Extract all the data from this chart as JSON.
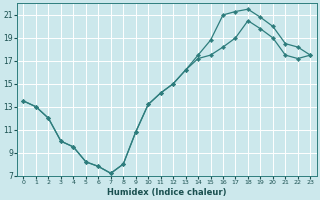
{
  "title": "",
  "xlabel": "Humidex (Indice chaleur)",
  "ylabel": "",
  "bg_color": "#cce8ec",
  "grid_color": "#ffffff",
  "line_color": "#2e7d7d",
  "line1": {
    "x": [
      0,
      1,
      2,
      3,
      4,
      5,
      6,
      7,
      8,
      9,
      10,
      11,
      12,
      13,
      14,
      15,
      16,
      17,
      18,
      19,
      20,
      21,
      22,
      23
    ],
    "y": [
      13.5,
      13.0,
      12.0,
      10.0,
      9.5,
      8.2,
      7.8,
      7.2,
      8.0,
      10.8,
      13.2,
      14.2,
      15.0,
      16.2,
      17.5,
      18.8,
      21.0,
      21.3,
      21.5,
      20.8,
      20.0,
      18.5,
      18.2,
      17.5
    ]
  },
  "line2": {
    "x": [
      0,
      1,
      2,
      3,
      4,
      5,
      6,
      7,
      8,
      9,
      10,
      11,
      12,
      13,
      14,
      15,
      16,
      17,
      18,
      19,
      20,
      21,
      22,
      23
    ],
    "y": [
      13.5,
      13.0,
      12.0,
      10.0,
      9.5,
      8.2,
      7.8,
      7.2,
      8.0,
      10.8,
      13.2,
      14.2,
      15.0,
      16.2,
      17.2,
      17.5,
      18.2,
      19.0,
      20.5,
      19.8,
      19.0,
      17.5,
      17.2,
      17.5
    ]
  },
  "xlim_min": -0.5,
  "xlim_max": 23.5,
  "ylim_min": 7,
  "ylim_max": 22,
  "xticks": [
    0,
    1,
    2,
    3,
    4,
    5,
    6,
    7,
    8,
    9,
    10,
    11,
    12,
    13,
    14,
    15,
    16,
    17,
    18,
    19,
    20,
    21,
    22,
    23
  ],
  "yticks": [
    7,
    9,
    11,
    13,
    15,
    17,
    19,
    21
  ]
}
